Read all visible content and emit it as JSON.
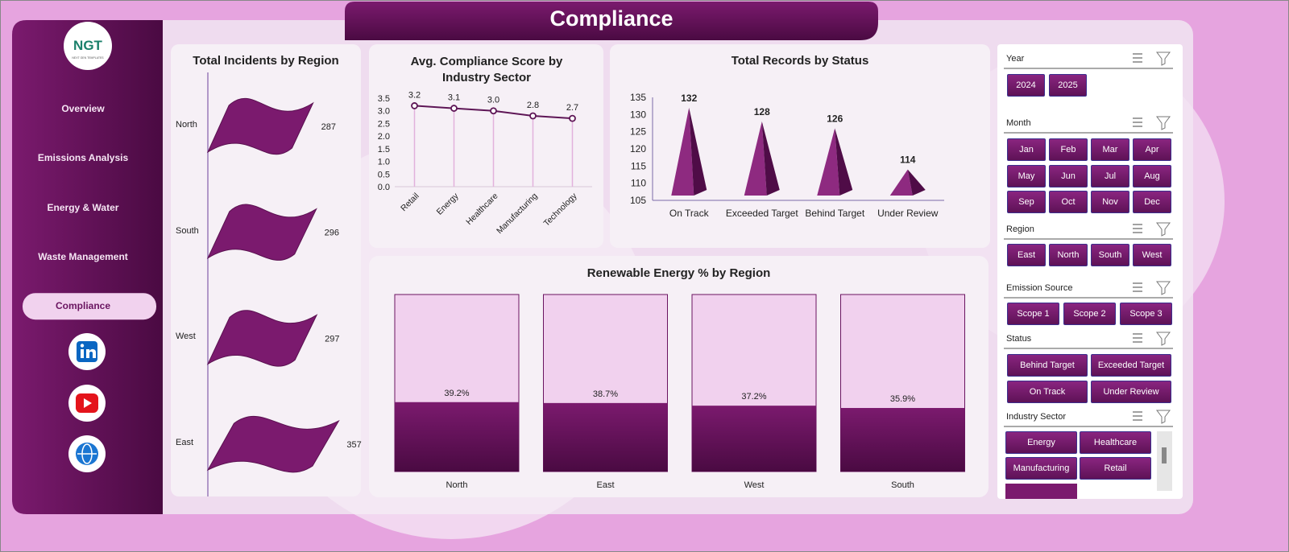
{
  "header": {
    "title": "Compliance"
  },
  "logo": {
    "text": "NGT",
    "subtitle": "NEXT GEN TEMPLATES"
  },
  "nav": {
    "items": [
      "Overview",
      "Emissions Analysis",
      "Energy & Water",
      "Waste Management",
      "Compliance"
    ],
    "active": 4
  },
  "chart_data": [
    {
      "type": "flag-bar",
      "title": "Total Incidents by Region",
      "categories": [
        "North",
        "South",
        "West",
        "East"
      ],
      "values": [
        287,
        296,
        297,
        357
      ],
      "color": "#7b1a6e"
    },
    {
      "type": "line",
      "title": "Avg. Compliance Score by Industry Sector",
      "categories": [
        "Retail",
        "Energy",
        "Healthcare",
        "Manufacturing",
        "Technology"
      ],
      "values": [
        3.2,
        3.1,
        3.0,
        2.8,
        2.7
      ],
      "value_labels": [
        "3.2",
        "3.1",
        "3.0",
        "2.8",
        "2.7"
      ],
      "color": "#5e1656",
      "ylim": [
        0,
        3.5
      ],
      "yticks": [
        {
          "value": 0,
          "label": "0.0"
        },
        0.5,
        {
          "value": 1,
          "label": "1.0"
        },
        1.5,
        {
          "value": 2,
          "label": "2.0"
        },
        2.5,
        {
          "value": 3,
          "label": "3.0"
        },
        3.5
      ]
    },
    {
      "type": "cone",
      "title": "Total Records by Status",
      "categories": [
        "On Track",
        "Exceeded Target",
        "Behind Target",
        "Under Review"
      ],
      "values": [
        132,
        128,
        126,
        114
      ],
      "color": "#8e2a80",
      "ylim": [
        105,
        135
      ],
      "yticks": [
        105,
        110,
        115,
        120,
        125,
        130,
        135
      ]
    },
    {
      "type": "fill-bar",
      "title": "Renewable Energy % by Region",
      "categories": [
        "North",
        "East",
        "West",
        "South"
      ],
      "values": [
        39.2,
        38.7,
        37.2,
        35.9
      ],
      "value_labels": [
        "39.2%",
        "38.7%",
        "37.2%",
        "35.9%"
      ],
      "color": "#6a1460",
      "ylim": [
        0,
        100
      ]
    }
  ],
  "slicers": [
    {
      "title": "Year",
      "items": [
        "2024",
        "2025"
      ]
    },
    {
      "title": "Month",
      "items": [
        "Jan",
        "Feb",
        "Mar",
        "Apr",
        "May",
        "Jun",
        "Jul",
        "Aug",
        "Sep",
        "Oct",
        "Nov",
        "Dec"
      ]
    },
    {
      "title": "Region",
      "items": [
        "East",
        "North",
        "South",
        "West"
      ]
    },
    {
      "title": "Emission Source",
      "items": [
        "Scope 1",
        "Scope 2",
        "Scope 3"
      ]
    },
    {
      "title": "Status",
      "items": [
        "Behind Target",
        "Exceeded Target",
        "On Track",
        "Under Review"
      ]
    },
    {
      "title": "Industry Sector",
      "items": [
        "Energy",
        "Healthcare",
        "Manufacturing",
        "Retail"
      ]
    }
  ]
}
